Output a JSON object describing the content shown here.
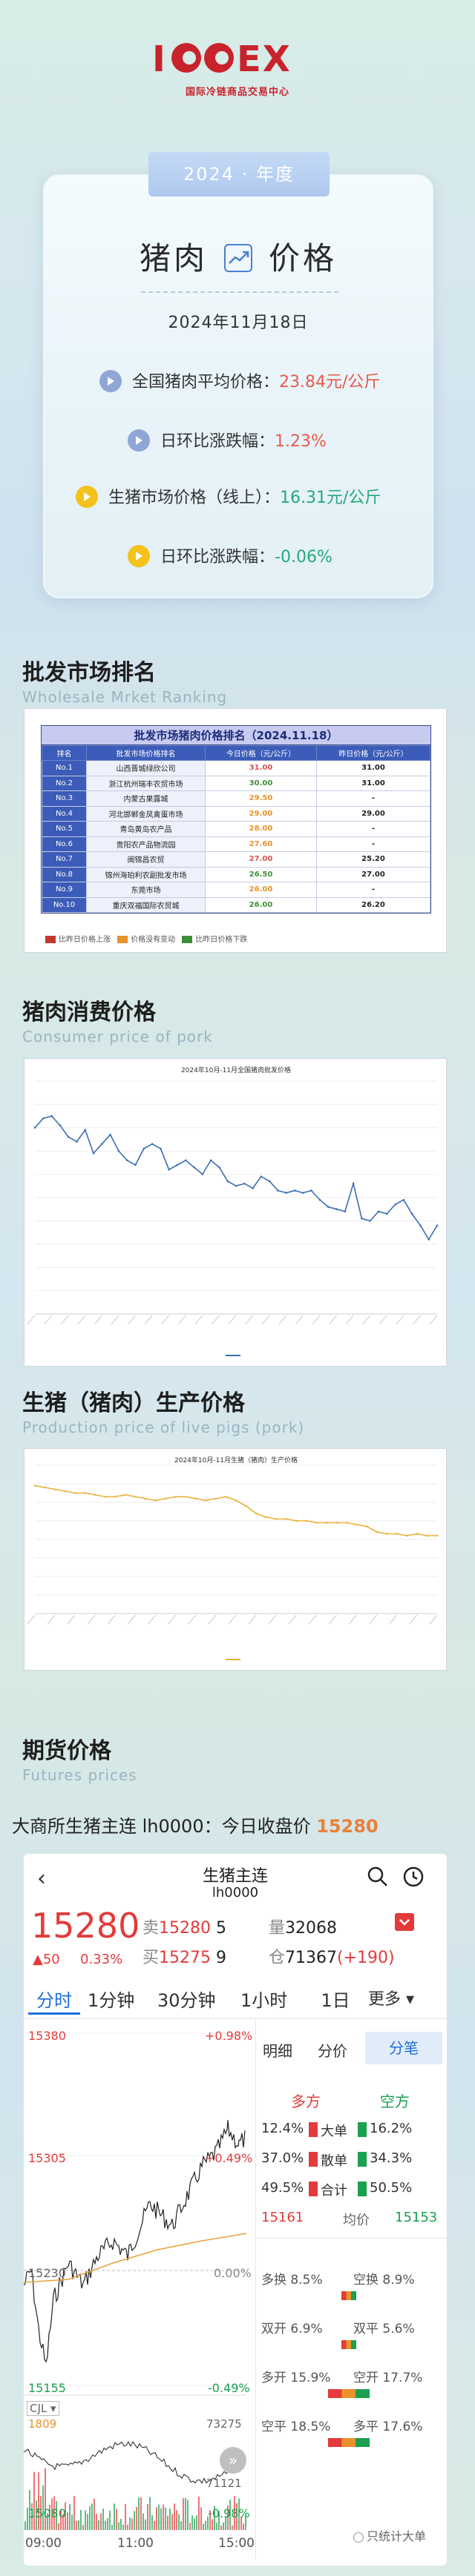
{
  "logo": {
    "mark": "ICCEX",
    "subtitle": "国际冷链商品交易中心"
  },
  "header": {
    "year_badge": "2024 · 年度",
    "title_left": "猪肉",
    "title_right": "价格",
    "date": "2024年11月18日",
    "stats": [
      {
        "label": "全国猪肉平均价格：",
        "value": "23.84元/公斤",
        "color": "#e85a4f"
      },
      {
        "label": "日环比涨跌幅：",
        "value": "1.23%",
        "color": "#e85a4f"
      },
      {
        "label": "生猪市场价格（线上）：",
        "value": "16.31元/公斤",
        "color": "#28a87a"
      },
      {
        "label": "日环比涨跌幅：",
        "value": "-0.06%",
        "color": "#28a87a"
      }
    ]
  },
  "sections": {
    "wholesale": {
      "title": "批发市场排名",
      "subtitle": "Wholesale Mrket Ranking"
    },
    "consumer": {
      "title": "猪肉消费价格",
      "subtitle": "Consumer price of pork"
    },
    "production": {
      "title": "生猪（猪肉）生产价格",
      "subtitle": "Production price of live pigs (pork)"
    },
    "futures": {
      "title": "期货价格",
      "subtitle": "Futures prices"
    }
  },
  "ranking": {
    "title": "批发市场猪肉价格排名（2024.11.18）",
    "headers": [
      "排名",
      "批发市场价格排名",
      "今日价格（元/公斤）",
      "昨日价格（元/公斤）"
    ],
    "rows": [
      {
        "no": "No.1",
        "name": "山西晋城绿欣公司",
        "today": "31.00",
        "yesterday": "31.00",
        "tcolor": "#d9534f"
      },
      {
        "no": "No.2",
        "name": "浙江杭州瑞丰农贸市场",
        "today": "30.00",
        "yesterday": "31.00",
        "tcolor": "#3f8f3a"
      },
      {
        "no": "No.3",
        "name": "内蒙古果露城",
        "today": "29.50",
        "yesterday": "-",
        "tcolor": "#e8922a"
      },
      {
        "no": "No.4",
        "name": "河北邯郸金凤禽蛋市场",
        "today": "29.00",
        "yesterday": "29.00",
        "tcolor": "#e8922a"
      },
      {
        "no": "No.5",
        "name": "青岛黄岛农产品",
        "today": "28.00",
        "yesterday": "-",
        "tcolor": "#e8922a"
      },
      {
        "no": "No.6",
        "name": "贵阳农产品物流园",
        "today": "27.60",
        "yesterday": "-",
        "tcolor": "#e8922a"
      },
      {
        "no": "No.7",
        "name": "闽锦昌农贸",
        "today": "27.00",
        "yesterday": "25.20",
        "tcolor": "#d9534f"
      },
      {
        "no": "No.8",
        "name": "锦州海珀利农副批发市场",
        "today": "26.50",
        "yesterday": "27.00",
        "tcolor": "#3f8f3a"
      },
      {
        "no": "No.9",
        "name": "东莞市场",
        "today": "26.00",
        "yesterday": "-",
        "tcolor": "#e8922a"
      },
      {
        "no": "No.10",
        "name": "重庆双福国际农贸城",
        "today": "26.00",
        "yesterday": "26.20",
        "tcolor": "#3f8f3a"
      }
    ],
    "legend": [
      {
        "label": "比昨日价格上涨",
        "color": "#c0392b"
      },
      {
        "label": "价格没有变动",
        "color": "#e8922a"
      },
      {
        "label": "比昨日价格下跌",
        "color": "#3f8f3a"
      }
    ]
  },
  "chart_data": [
    {
      "type": "line",
      "title": "2024年10月-11月全国猪肉批发价格",
      "series": [
        {
          "name": "价格",
          "values": [
            26.0,
            26.4,
            26.5,
            26.1,
            25.6,
            25.4,
            25.9,
            24.9,
            25.3,
            25.7,
            25.0,
            24.6,
            24.4,
            25.1,
            25.3,
            25.1,
            24.2,
            24.4,
            24.6,
            24.3,
            24.0,
            24.6,
            24.3,
            23.7,
            23.5,
            23.6,
            23.4,
            23.9,
            23.7,
            23.3,
            23.2,
            23.3,
            23.2,
            23.3,
            22.9,
            22.6,
            22.5,
            22.4,
            23.6,
            22.1,
            22.0,
            22.4,
            22.3,
            22.7,
            22.9,
            22.3,
            21.8,
            21.2,
            21.8
          ]
        }
      ],
      "ylim": [
        18,
        28
      ]
    },
    {
      "type": "line",
      "title": "2024年10月-11月生猪（猪肉）生产价格",
      "series": [
        {
          "name": "价格",
          "values": [
            18.9,
            18.8,
            18.7,
            18.6,
            18.5,
            18.5,
            18.4,
            18.3,
            18.3,
            18.4,
            18.3,
            18.2,
            18.1,
            18.2,
            18.3,
            18.3,
            18.2,
            18.1,
            18.2,
            18.3,
            18.1,
            17.8,
            17.4,
            17.2,
            17.1,
            17.1,
            17.0,
            17.0,
            16.9,
            16.9,
            16.9,
            16.9,
            16.8,
            16.7,
            16.4,
            16.3,
            16.3,
            16.2,
            16.3,
            16.2,
            16.2
          ]
        }
      ],
      "ylim": [
        12,
        20
      ]
    }
  ],
  "futures": {
    "line_prefix": "大商所生猪主连 lh0000：今日收盘价 ",
    "close": "15280",
    "app": {
      "back": "‹",
      "name": "生猪主连",
      "code": "lh0000",
      "price": "15280",
      "change": "▲50",
      "change_pct": "0.33%",
      "sell_label": "卖",
      "sell_price": "15280",
      "sell_qty": "5",
      "buy_label": "买",
      "buy_price": "15275",
      "buy_qty": "9",
      "vol_label": "量",
      "vol": "32068",
      "oi_label": "仓",
      "oi": "71367",
      "oi_chg": "(+190)",
      "tabs": [
        "分时",
        "1分钟",
        "30分钟",
        "1小时",
        "1日",
        "更多 ▾"
      ],
      "left_axis": [
        "15380",
        "15305",
        "15230",
        "15155",
        "15080"
      ],
      "right_axis": [
        "+0.98%",
        "+0.49%",
        "0.00%",
        "-0.49%",
        "-0.98%"
      ],
      "side_tabs": [
        "明细",
        "分价",
        "分笔"
      ],
      "dk_heads": [
        "多方",
        "空方"
      ],
      "dk_rows": [
        {
          "l": "12.4%",
          "lbl": "大单",
          "r": "16.2%"
        },
        {
          "l": "37.0%",
          "lbl": "散单",
          "r": "34.3%"
        },
        {
          "l": "49.5%",
          "lbl": "合计",
          "r": "50.5%"
        }
      ],
      "avg_row": {
        "l": "15161",
        "lbl": "均价",
        "r": "15153"
      },
      "ext": [
        {
          "a": "多换 8.5%",
          "b": "空换 8.9%"
        },
        {
          "a": "双开 6.9%",
          "b": "双平 5.6%"
        },
        {
          "a": "多开 15.9%",
          "b": "空开 17.7%"
        },
        {
          "a": "空平 18.5%",
          "b": "多平 17.6%"
        }
      ],
      "vol_tag": "CJL ▾",
      "vol_top": "1809",
      "vol_right_top": "73275",
      "vol_right_mid": "71121",
      "times": [
        "09:00",
        "11:00",
        "15:00"
      ],
      "only_large": "只统计大单"
    }
  },
  "colors": {
    "up": "#e33b3b",
    "down": "#1aa04f",
    "accent": "#e8803a",
    "tab_blue": "#1f6fd6"
  }
}
